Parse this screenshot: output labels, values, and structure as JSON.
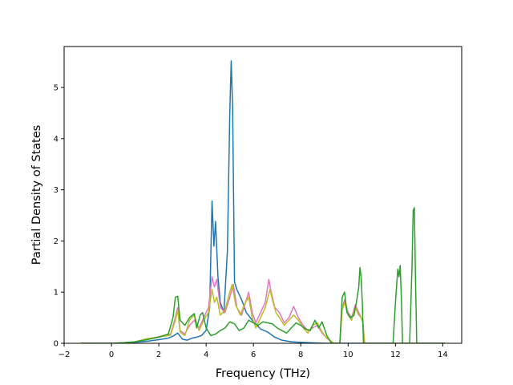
{
  "chart_data": {
    "type": "line",
    "title": "",
    "xlabel": "Frequency (THz)",
    "ylabel": "Partial Density of States",
    "xlim": [
      -2.0,
      14.8
    ],
    "ylim": [
      0,
      5.8
    ],
    "xticks": [
      -2,
      0,
      2,
      4,
      6,
      8,
      10,
      12,
      14
    ],
    "yticks": [
      0,
      1,
      2,
      3,
      4,
      5
    ],
    "grid": false,
    "legend": "none",
    "series": [
      {
        "color": "#1f77b4",
        "points": [
          [
            -1.3,
            0
          ],
          [
            0,
            0
          ],
          [
            0.5,
            0.01
          ],
          [
            1.0,
            0.02
          ],
          [
            1.5,
            0.04
          ],
          [
            2.0,
            0.07
          ],
          [
            2.4,
            0.1
          ],
          [
            2.6,
            0.14
          ],
          [
            2.8,
            0.2
          ],
          [
            3.0,
            0.08
          ],
          [
            3.2,
            0.06
          ],
          [
            3.4,
            0.1
          ],
          [
            3.6,
            0.12
          ],
          [
            3.8,
            0.15
          ],
          [
            4.0,
            0.25
          ],
          [
            4.15,
            0.7
          ],
          [
            4.25,
            2.78
          ],
          [
            4.33,
            1.9
          ],
          [
            4.4,
            2.38
          ],
          [
            4.5,
            1.3
          ],
          [
            4.6,
            0.8
          ],
          [
            4.75,
            0.6
          ],
          [
            4.9,
            1.8
          ],
          [
            5.0,
            4.5
          ],
          [
            5.06,
            5.52
          ],
          [
            5.12,
            4.6
          ],
          [
            5.2,
            1.2
          ],
          [
            5.3,
            1.05
          ],
          [
            5.5,
            0.85
          ],
          [
            5.7,
            0.6
          ],
          [
            6.0,
            0.42
          ],
          [
            6.3,
            0.28
          ],
          [
            6.6,
            0.22
          ],
          [
            6.9,
            0.12
          ],
          [
            7.2,
            0.06
          ],
          [
            7.6,
            0.03
          ],
          [
            8.0,
            0.02
          ],
          [
            8.4,
            0.01
          ],
          [
            9.0,
            0
          ],
          [
            14.1,
            0
          ]
        ]
      },
      {
        "color": "#e377c2",
        "points": [
          [
            -1.3,
            0
          ],
          [
            0,
            0
          ],
          [
            0.5,
            0.01
          ],
          [
            1.0,
            0.03
          ],
          [
            1.5,
            0.08
          ],
          [
            2.0,
            0.13
          ],
          [
            2.5,
            0.18
          ],
          [
            2.7,
            0.5
          ],
          [
            2.8,
            0.7
          ],
          [
            2.9,
            0.25
          ],
          [
            3.1,
            0.18
          ],
          [
            3.3,
            0.35
          ],
          [
            3.5,
            0.45
          ],
          [
            3.7,
            0.3
          ],
          [
            3.9,
            0.5
          ],
          [
            4.1,
            0.7
          ],
          [
            4.25,
            1.3
          ],
          [
            4.35,
            1.1
          ],
          [
            4.45,
            1.25
          ],
          [
            4.6,
            0.7
          ],
          [
            4.8,
            0.6
          ],
          [
            5.0,
            0.9
          ],
          [
            5.15,
            1.15
          ],
          [
            5.3,
            0.7
          ],
          [
            5.5,
            0.55
          ],
          [
            5.7,
            0.85
          ],
          [
            5.8,
            1.0
          ],
          [
            5.95,
            0.6
          ],
          [
            6.1,
            0.4
          ],
          [
            6.3,
            0.6
          ],
          [
            6.5,
            0.8
          ],
          [
            6.65,
            1.25
          ],
          [
            6.75,
            1.0
          ],
          [
            6.9,
            0.7
          ],
          [
            7.1,
            0.6
          ],
          [
            7.3,
            0.4
          ],
          [
            7.5,
            0.5
          ],
          [
            7.7,
            0.72
          ],
          [
            7.9,
            0.5
          ],
          [
            8.1,
            0.35
          ],
          [
            8.3,
            0.25
          ],
          [
            8.5,
            0.3
          ],
          [
            8.7,
            0.35
          ],
          [
            8.9,
            0.2
          ],
          [
            9.1,
            0.1
          ],
          [
            9.4,
            0
          ],
          [
            9.65,
            0
          ],
          [
            9.75,
            0.7
          ],
          [
            9.85,
            0.85
          ],
          [
            10.0,
            0.6
          ],
          [
            10.15,
            0.5
          ],
          [
            10.3,
            0.75
          ],
          [
            10.45,
            0.6
          ],
          [
            10.55,
            0.5
          ],
          [
            10.62,
            0.45
          ],
          [
            10.7,
            0
          ],
          [
            14.1,
            0
          ]
        ]
      },
      {
        "color": "#bcbd22",
        "points": [
          [
            -1.3,
            0
          ],
          [
            0,
            0
          ],
          [
            0.5,
            0.01
          ],
          [
            1.0,
            0.03
          ],
          [
            1.5,
            0.09
          ],
          [
            2.0,
            0.12
          ],
          [
            2.5,
            0.16
          ],
          [
            2.7,
            0.45
          ],
          [
            2.8,
            0.65
          ],
          [
            2.9,
            0.22
          ],
          [
            3.1,
            0.15
          ],
          [
            3.3,
            0.45
          ],
          [
            3.5,
            0.55
          ],
          [
            3.7,
            0.25
          ],
          [
            3.9,
            0.45
          ],
          [
            4.1,
            0.6
          ],
          [
            4.25,
            1.05
          ],
          [
            4.35,
            0.8
          ],
          [
            4.45,
            0.9
          ],
          [
            4.6,
            0.55
          ],
          [
            4.8,
            0.65
          ],
          [
            5.0,
            1.0
          ],
          [
            5.1,
            1.15
          ],
          [
            5.25,
            0.75
          ],
          [
            5.45,
            0.55
          ],
          [
            5.6,
            0.75
          ],
          [
            5.8,
            0.9
          ],
          [
            5.95,
            0.5
          ],
          [
            6.1,
            0.3
          ],
          [
            6.3,
            0.5
          ],
          [
            6.5,
            0.7
          ],
          [
            6.7,
            1.05
          ],
          [
            6.8,
            0.85
          ],
          [
            6.95,
            0.6
          ],
          [
            7.1,
            0.5
          ],
          [
            7.3,
            0.35
          ],
          [
            7.5,
            0.45
          ],
          [
            7.7,
            0.55
          ],
          [
            7.9,
            0.45
          ],
          [
            8.1,
            0.3
          ],
          [
            8.3,
            0.2
          ],
          [
            8.5,
            0.35
          ],
          [
            8.7,
            0.4
          ],
          [
            8.9,
            0.22
          ],
          [
            9.1,
            0.1
          ],
          [
            9.4,
            0
          ],
          [
            9.65,
            0
          ],
          [
            9.75,
            0.65
          ],
          [
            9.85,
            0.8
          ],
          [
            10.0,
            0.55
          ],
          [
            10.15,
            0.45
          ],
          [
            10.3,
            0.7
          ],
          [
            10.45,
            0.55
          ],
          [
            10.55,
            0.5
          ],
          [
            10.62,
            0.4
          ],
          [
            10.7,
            0
          ],
          [
            14.1,
            0
          ]
        ]
      },
      {
        "color": "#2ca02c",
        "points": [
          [
            -1.3,
            0
          ],
          [
            0,
            0
          ],
          [
            0.5,
            0.01
          ],
          [
            1.0,
            0.03
          ],
          [
            1.5,
            0.07
          ],
          [
            2.0,
            0.12
          ],
          [
            2.4,
            0.18
          ],
          [
            2.6,
            0.5
          ],
          [
            2.7,
            0.9
          ],
          [
            2.8,
            0.92
          ],
          [
            2.9,
            0.45
          ],
          [
            3.1,
            0.35
          ],
          [
            3.3,
            0.5
          ],
          [
            3.5,
            0.58
          ],
          [
            3.6,
            0.3
          ],
          [
            3.75,
            0.55
          ],
          [
            3.85,
            0.6
          ],
          [
            4.0,
            0.3
          ],
          [
            4.2,
            0.15
          ],
          [
            4.4,
            0.18
          ],
          [
            4.6,
            0.25
          ],
          [
            4.8,
            0.3
          ],
          [
            5.0,
            0.42
          ],
          [
            5.2,
            0.38
          ],
          [
            5.4,
            0.25
          ],
          [
            5.6,
            0.3
          ],
          [
            5.8,
            0.45
          ],
          [
            6.0,
            0.4
          ],
          [
            6.2,
            0.35
          ],
          [
            6.4,
            0.42
          ],
          [
            6.6,
            0.4
          ],
          [
            6.8,
            0.38
          ],
          [
            7.0,
            0.3
          ],
          [
            7.2,
            0.25
          ],
          [
            7.4,
            0.2
          ],
          [
            7.6,
            0.3
          ],
          [
            7.8,
            0.4
          ],
          [
            8.0,
            0.35
          ],
          [
            8.2,
            0.28
          ],
          [
            8.4,
            0.25
          ],
          [
            8.6,
            0.45
          ],
          [
            8.75,
            0.3
          ],
          [
            8.9,
            0.42
          ],
          [
            9.1,
            0.15
          ],
          [
            9.3,
            0
          ],
          [
            9.65,
            0
          ],
          [
            9.75,
            0.9
          ],
          [
            9.85,
            1.0
          ],
          [
            9.95,
            0.6
          ],
          [
            10.1,
            0.5
          ],
          [
            10.25,
            0.55
          ],
          [
            10.35,
            0.8
          ],
          [
            10.45,
            1.1
          ],
          [
            10.5,
            1.48
          ],
          [
            10.55,
            1.3
          ],
          [
            10.6,
            0.8
          ],
          [
            10.65,
            0
          ],
          [
            11.9,
            0
          ],
          [
            12.0,
            0.8
          ],
          [
            12.1,
            1.45
          ],
          [
            12.15,
            1.3
          ],
          [
            12.2,
            1.52
          ],
          [
            12.25,
            0.9
          ],
          [
            12.3,
            0
          ],
          [
            12.6,
            0
          ],
          [
            12.7,
            1.5
          ],
          [
            12.75,
            2.6
          ],
          [
            12.8,
            2.65
          ],
          [
            12.85,
            1.2
          ],
          [
            12.9,
            0
          ],
          [
            14.1,
            0
          ]
        ]
      }
    ]
  }
}
